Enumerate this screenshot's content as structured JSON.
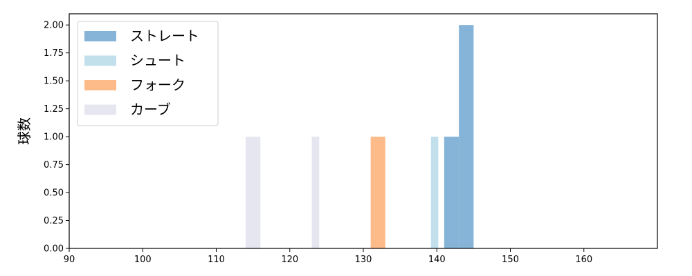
{
  "chart_data": {
    "type": "bar",
    "title": "",
    "xlabel": "",
    "ylabel": "球数",
    "xlim": [
      90,
      170
    ],
    "ylim": [
      0,
      2.1
    ],
    "xticks": [
      90,
      100,
      110,
      120,
      130,
      140,
      150,
      160
    ],
    "yticks": [
      "0.00",
      "0.25",
      "0.50",
      "0.75",
      "1.00",
      "1.25",
      "1.50",
      "1.75",
      "2.00"
    ],
    "grid": false,
    "legend_position": "top-left",
    "series": [
      {
        "name": "ストレート",
        "color": "#85b4d8",
        "bins": [
          {
            "x0": 141,
            "x1": 143,
            "count": 1
          },
          {
            "x0": 143,
            "x1": 145,
            "count": 2
          }
        ]
      },
      {
        "name": "シュート",
        "color": "#c2dfec",
        "bins": [
          {
            "x0": 139.2,
            "x1": 140.2,
            "count": 1
          }
        ]
      },
      {
        "name": "フォーク",
        "color": "#fdbb8a",
        "bins": [
          {
            "x0": 131,
            "x1": 133,
            "count": 1
          }
        ]
      },
      {
        "name": "カーブ",
        "color": "#e6e6f1",
        "bins": [
          {
            "x0": 114,
            "x1": 116,
            "count": 1
          },
          {
            "x0": 123,
            "x1": 124,
            "count": 1
          }
        ]
      }
    ]
  }
}
